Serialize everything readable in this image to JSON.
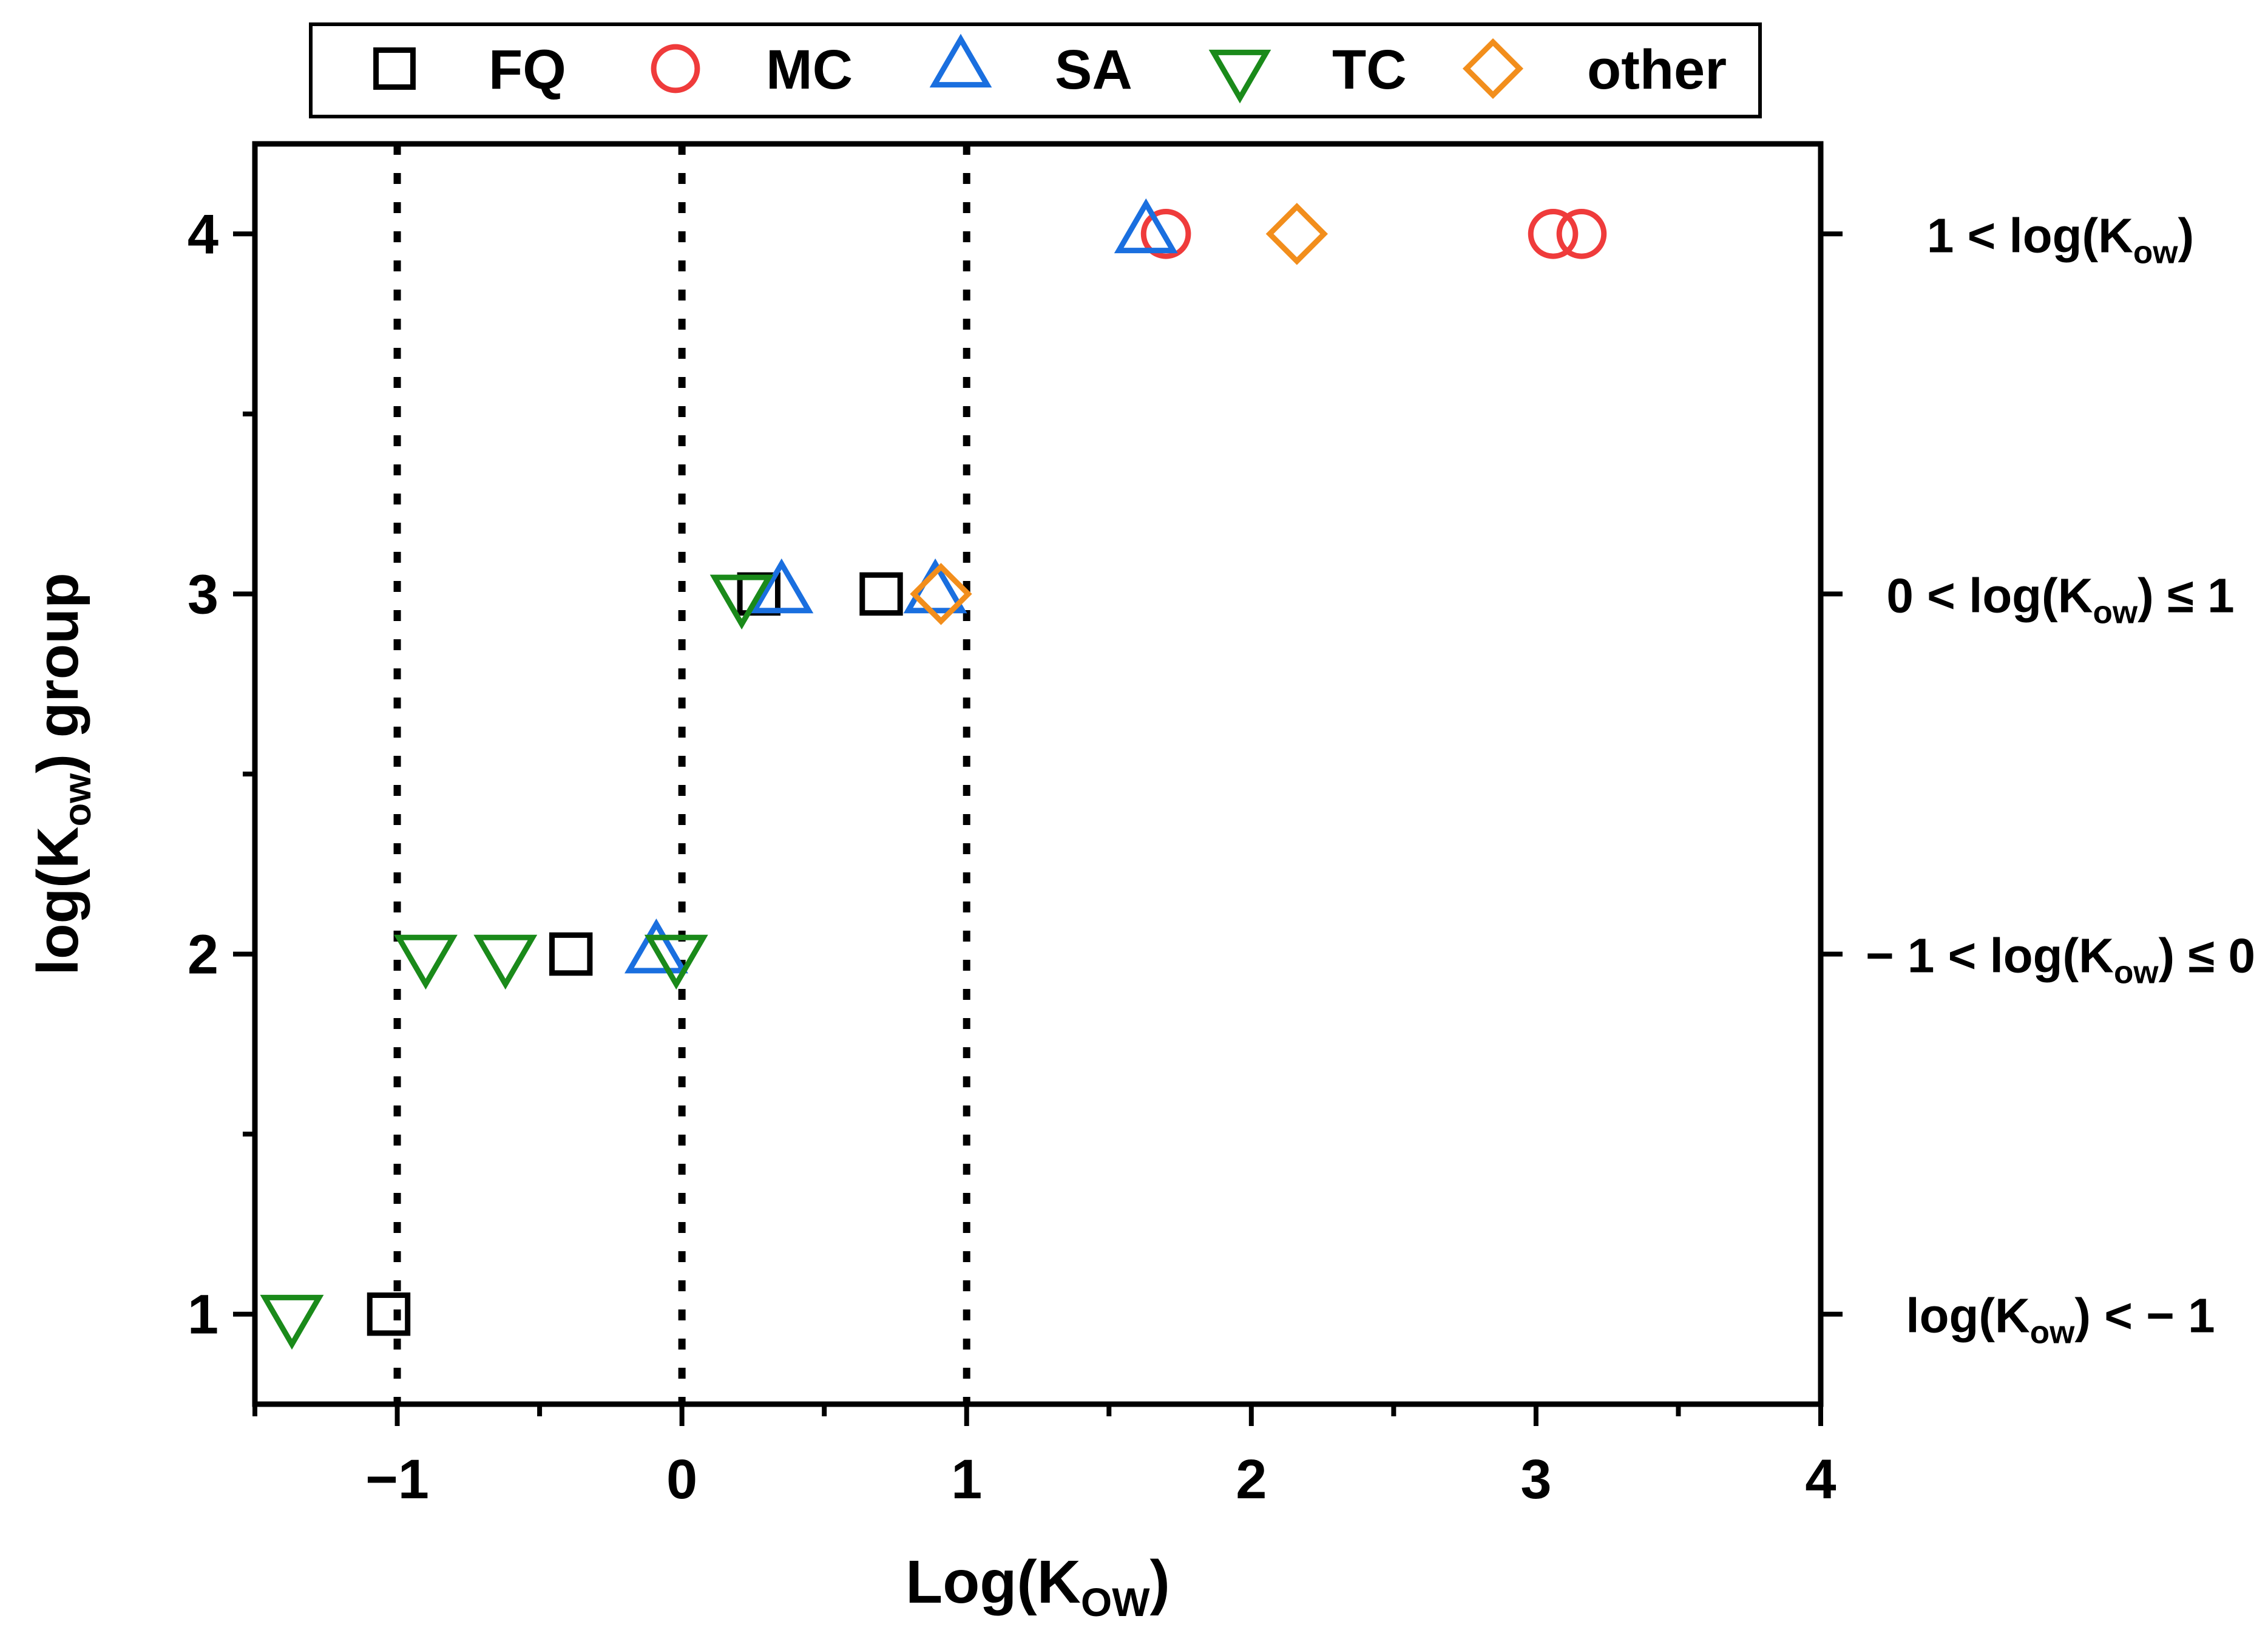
{
  "chart_data": {
    "type": "scatter",
    "title": "",
    "xlabel": {
      "main": "Log(K",
      "sub": "OW",
      "close": ")"
    },
    "ylabel": {
      "main": "log(K",
      "sub": "ow",
      "close": ") group"
    },
    "xlim": [
      -1.5,
      4
    ],
    "ylim": [
      0.75,
      4.25
    ],
    "x_ticks": [
      -1,
      0,
      1,
      2,
      3,
      4
    ],
    "x_tick_labels": [
      "−1",
      "0",
      "1",
      "2",
      "3",
      "4"
    ],
    "y_ticks": [
      1,
      2,
      3,
      4
    ],
    "y_tick_labels": [
      "1",
      "2",
      "3",
      "4"
    ],
    "reference_lines_x": [
      -1,
      0,
      1
    ],
    "right_axis_labels": [
      {
        "y": 4,
        "pre": "1 < log(K",
        "sub": "ow",
        "post": ")"
      },
      {
        "y": 3,
        "pre": "0 < log(K",
        "sub": "ow",
        "post": ") ≤ 1"
      },
      {
        "y": 2,
        "pre": "− 1 < log(K",
        "sub": "ow",
        "post": ") ≤ 0"
      },
      {
        "y": 1,
        "pre": "log(K",
        "sub": "ow",
        "post": ") < − 1"
      }
    ],
    "legend_position": "top",
    "series": [
      {
        "name": "FQ",
        "marker": "square",
        "color": "#000000",
        "points": [
          [
            -1.03,
            1
          ],
          [
            -0.39,
            2
          ],
          [
            0.27,
            3
          ],
          [
            0.7,
            3
          ]
        ]
      },
      {
        "name": "MC",
        "marker": "circle",
        "color": "#ef3b3b",
        "points": [
          [
            1.7,
            4
          ],
          [
            3.06,
            4
          ],
          [
            3.16,
            4
          ]
        ]
      },
      {
        "name": "SA",
        "marker": "triangle-up",
        "color": "#1a6fdf",
        "points": [
          [
            1.63,
            4
          ],
          [
            -0.09,
            2
          ],
          [
            0.35,
            3
          ],
          [
            0.89,
            3
          ]
        ]
      },
      {
        "name": "TC",
        "marker": "triangle-down",
        "color": "#1a8a1a",
        "points": [
          [
            -1.37,
            1
          ],
          [
            -0.9,
            2
          ],
          [
            -0.62,
            2
          ],
          [
            -0.02,
            2
          ],
          [
            0.21,
            3
          ]
        ]
      },
      {
        "name": "other",
        "marker": "diamond",
        "color": "#f28e1c",
        "points": [
          [
            2.16,
            4
          ],
          [
            0.91,
            3
          ]
        ]
      }
    ]
  }
}
